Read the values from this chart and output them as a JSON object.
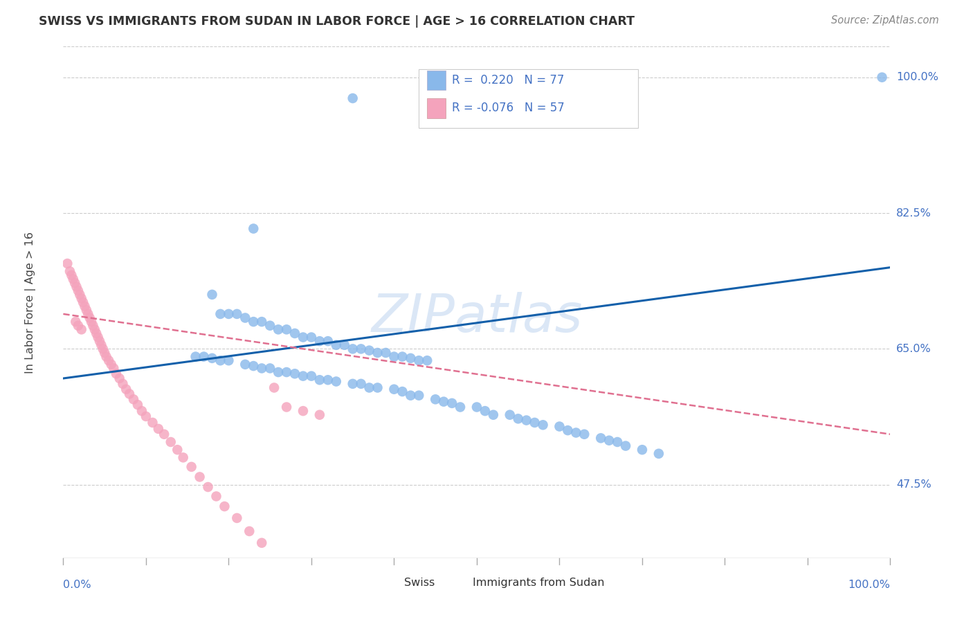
{
  "title": "SWISS VS IMMIGRANTS FROM SUDAN IN LABOR FORCE | AGE > 16 CORRELATION CHART",
  "source": "Source: ZipAtlas.com",
  "ylabel": "In Labor Force | Age > 16",
  "ytick_values": [
    0.475,
    0.65,
    0.825,
    1.0
  ],
  "ytick_labels": [
    "47.5%",
    "65.0%",
    "82.5%",
    "100.0%"
  ],
  "xtick_values": [
    0.0,
    0.1,
    0.2,
    0.3,
    0.4,
    0.5,
    0.6,
    0.7,
    0.8,
    0.9,
    1.0
  ],
  "xtick_labels_shown": {
    "0.0": "0.0%",
    "1.0": "100.0%"
  },
  "background_color": "#ffffff",
  "grid_color": "#cccccc",
  "watermark": "ZIPatlas",
  "swiss_color": "#89b8ea",
  "sudan_color": "#f4a3bc",
  "swiss_line_color": "#1460aa",
  "sudan_line_color": "#e07090",
  "swiss_scatter_x": [
    0.35,
    0.99,
    0.23,
    0.18,
    0.19,
    0.2,
    0.21,
    0.22,
    0.23,
    0.24,
    0.25,
    0.26,
    0.27,
    0.28,
    0.29,
    0.3,
    0.31,
    0.32,
    0.33,
    0.34,
    0.35,
    0.36,
    0.37,
    0.38,
    0.39,
    0.4,
    0.41,
    0.42,
    0.43,
    0.44,
    0.16,
    0.17,
    0.18,
    0.19,
    0.2,
    0.22,
    0.23,
    0.24,
    0.25,
    0.26,
    0.27,
    0.28,
    0.29,
    0.3,
    0.31,
    0.32,
    0.33,
    0.35,
    0.36,
    0.37,
    0.38,
    0.4,
    0.41,
    0.42,
    0.43,
    0.45,
    0.46,
    0.47,
    0.48,
    0.5,
    0.51,
    0.52,
    0.54,
    0.55,
    0.56,
    0.57,
    0.58,
    0.6,
    0.61,
    0.62,
    0.63,
    0.65,
    0.66,
    0.67,
    0.68,
    0.7,
    0.72
  ],
  "swiss_scatter_y": [
    0.973,
    1.0,
    0.805,
    0.72,
    0.695,
    0.695,
    0.695,
    0.69,
    0.685,
    0.685,
    0.68,
    0.675,
    0.675,
    0.67,
    0.665,
    0.665,
    0.66,
    0.66,
    0.655,
    0.655,
    0.65,
    0.65,
    0.648,
    0.645,
    0.645,
    0.64,
    0.64,
    0.638,
    0.635,
    0.635,
    0.64,
    0.64,
    0.638,
    0.635,
    0.635,
    0.63,
    0.628,
    0.625,
    0.625,
    0.62,
    0.62,
    0.618,
    0.615,
    0.615,
    0.61,
    0.61,
    0.608,
    0.605,
    0.605,
    0.6,
    0.6,
    0.598,
    0.595,
    0.59,
    0.59,
    0.585,
    0.582,
    0.58,
    0.575,
    0.575,
    0.57,
    0.565,
    0.565,
    0.56,
    0.558,
    0.555,
    0.552,
    0.55,
    0.545,
    0.542,
    0.54,
    0.535,
    0.532,
    0.53,
    0.525,
    0.52,
    0.515
  ],
  "sudan_scatter_x": [
    0.005,
    0.008,
    0.01,
    0.012,
    0.014,
    0.016,
    0.018,
    0.02,
    0.022,
    0.024,
    0.026,
    0.028,
    0.03,
    0.032,
    0.034,
    0.036,
    0.038,
    0.04,
    0.042,
    0.044,
    0.046,
    0.048,
    0.05,
    0.052,
    0.055,
    0.058,
    0.061,
    0.064,
    0.068,
    0.072,
    0.076,
    0.08,
    0.085,
    0.09,
    0.095,
    0.1,
    0.108,
    0.115,
    0.122,
    0.13,
    0.138,
    0.145,
    0.155,
    0.165,
    0.175,
    0.185,
    0.195,
    0.21,
    0.225,
    0.24,
    0.255,
    0.27,
    0.29,
    0.31,
    0.015,
    0.018,
    0.022
  ],
  "sudan_scatter_y": [
    0.76,
    0.75,
    0.745,
    0.74,
    0.735,
    0.73,
    0.725,
    0.72,
    0.715,
    0.71,
    0.705,
    0.7,
    0.695,
    0.69,
    0.685,
    0.68,
    0.675,
    0.67,
    0.665,
    0.66,
    0.655,
    0.65,
    0.645,
    0.64,
    0.635,
    0.63,
    0.625,
    0.618,
    0.612,
    0.605,
    0.598,
    0.592,
    0.585,
    0.578,
    0.57,
    0.563,
    0.555,
    0.547,
    0.54,
    0.53,
    0.52,
    0.51,
    0.498,
    0.485,
    0.472,
    0.46,
    0.447,
    0.432,
    0.415,
    0.4,
    0.6,
    0.575,
    0.57,
    0.565,
    0.685,
    0.68,
    0.675
  ],
  "swiss_line": {
    "x0": 0.0,
    "y0": 0.612,
    "x1": 1.0,
    "y1": 0.755
  },
  "sudan_line": {
    "x0": 0.0,
    "y0": 0.695,
    "x1": 1.0,
    "y1": 0.54
  },
  "xlim": [
    0.0,
    1.0
  ],
  "ylim": [
    0.38,
    1.04
  ]
}
